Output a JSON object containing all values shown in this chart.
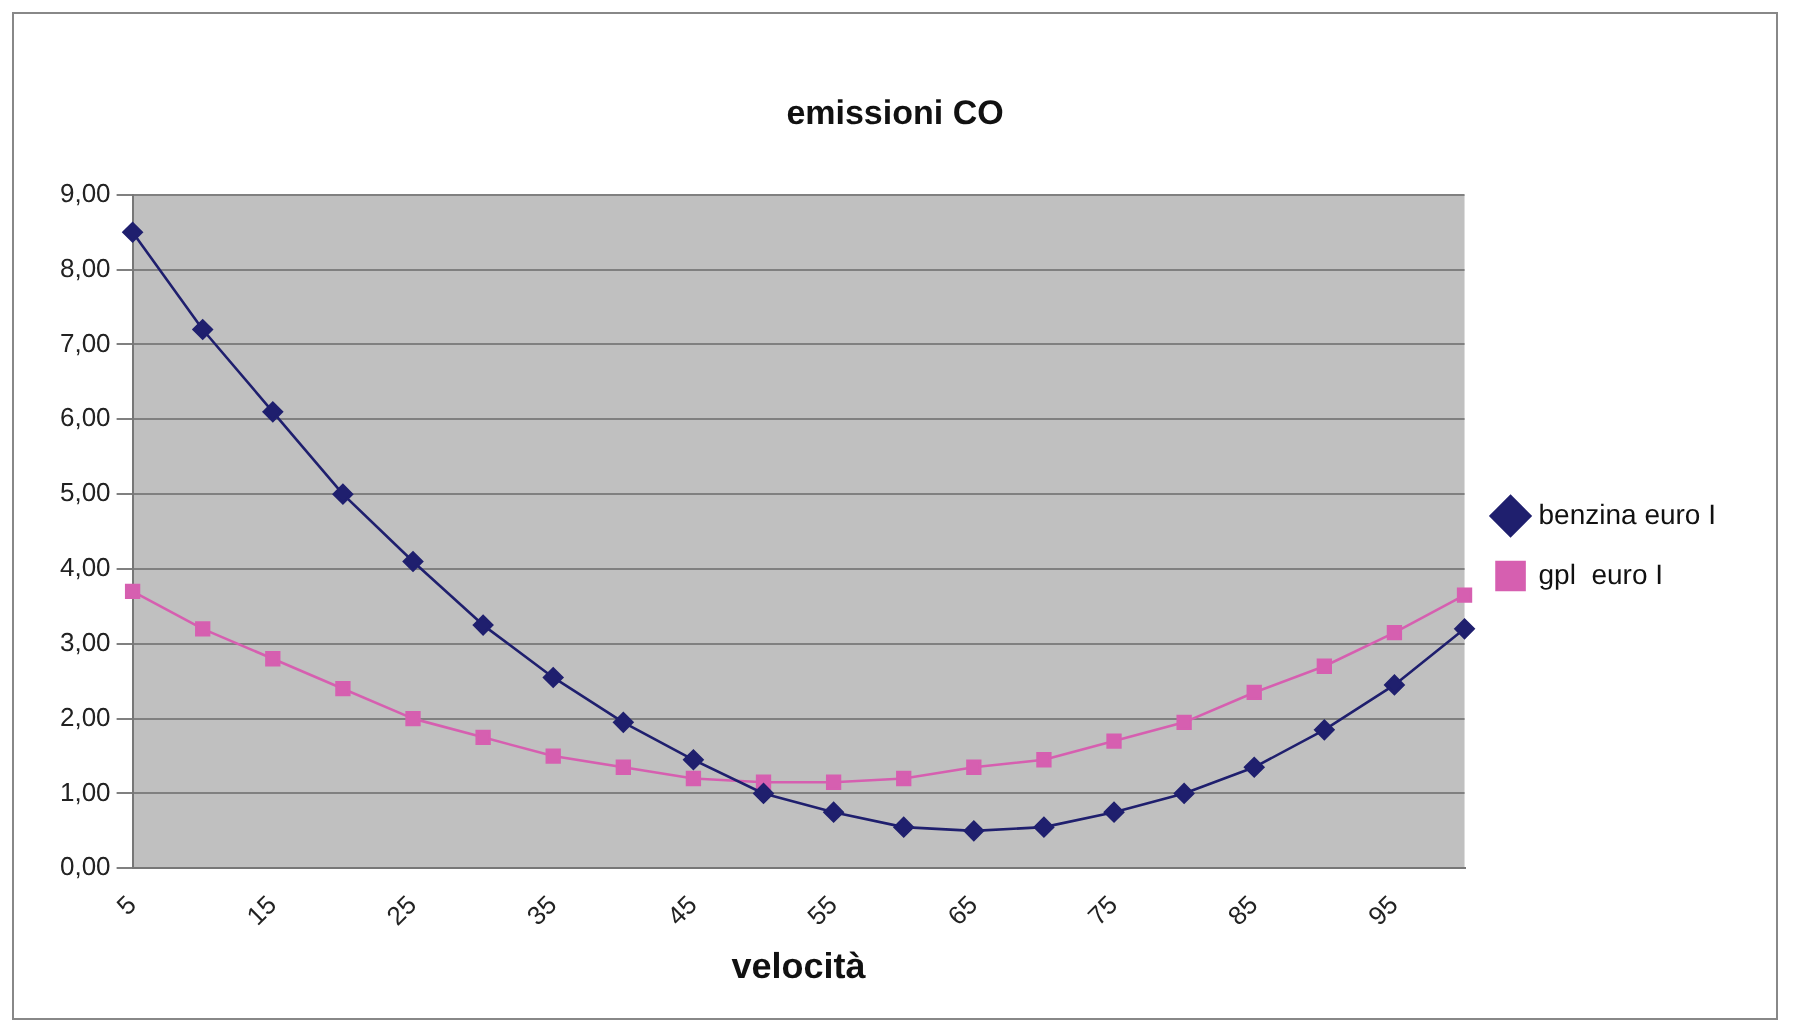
{
  "chart_data": {
    "type": "line",
    "title": "emissioni CO",
    "xlabel": "velocità",
    "categories": [
      "5",
      null,
      "15",
      null,
      "25",
      null,
      "35",
      null,
      "45",
      null,
      "55",
      null,
      "65",
      null,
      "75",
      null,
      "85",
      null,
      "95",
      null
    ],
    "series": [
      {
        "name": "benzina euro I",
        "color": "#1f1f6e",
        "marker": "diamond",
        "values": [
          8.5,
          7.2,
          6.1,
          5.0,
          4.1,
          3.25,
          2.55,
          1.95,
          1.45,
          1.0,
          0.75,
          0.55,
          0.5,
          0.55,
          0.75,
          1.0,
          1.35,
          1.85,
          2.45,
          3.2
        ]
      },
      {
        "name": "gpl  euro I",
        "color": "#d65fb0",
        "marker": "square",
        "values": [
          3.7,
          3.2,
          2.8,
          2.4,
          2.0,
          1.75,
          1.5,
          1.35,
          1.2,
          1.15,
          1.15,
          1.2,
          1.35,
          1.45,
          1.7,
          1.95,
          2.35,
          2.7,
          3.15,
          3.65
        ]
      }
    ],
    "ylim": [
      0,
      9
    ],
    "yticks": [
      {
        "value": 0,
        "label": "0,00"
      },
      {
        "value": 1,
        "label": "1,00"
      },
      {
        "value": 2,
        "label": "2,00"
      },
      {
        "value": 3,
        "label": "3,00"
      },
      {
        "value": 4,
        "label": "4,00"
      },
      {
        "value": 5,
        "label": "5,00"
      },
      {
        "value": 6,
        "label": "6,00"
      },
      {
        "value": 7,
        "label": "7,00"
      },
      {
        "value": 8,
        "label": "8,00"
      },
      {
        "value": 9,
        "label": "9,00"
      }
    ],
    "grid": "y",
    "legend": "right",
    "line_style": "solid"
  }
}
